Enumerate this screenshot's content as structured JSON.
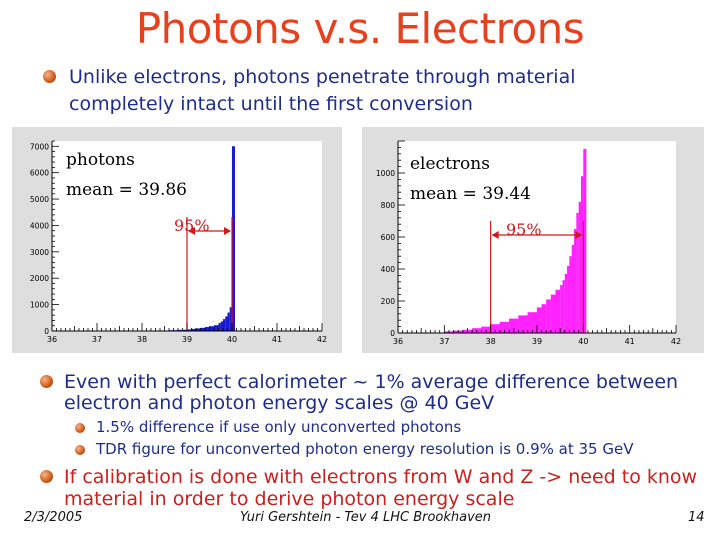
{
  "title": "Photons v.s. Electrons",
  "intro_line1": "Unlike electrons, photons penetrate through material",
  "intro_line2": "completely intact until the first conversion",
  "bullet2_line1": "Even with perfect calorimeter ~ 1% average difference between",
  "bullet2_line2": "electron and photon energy scales @ 40 GeV",
  "sub1": "1.5% difference if use only unconverted photons",
  "sub2": "TDR figure for unconverted photon energy resolution is  0.9% at 35 GeV",
  "bullet3_line1": "If calibration is done with electrons from W and Z -> need to know",
  "bullet3_line2": "material in order to derive photon energy scale",
  "footer": {
    "date": "2/3/2005",
    "author": "Yuri Gershtein - Tev 4 LHC Brookhaven",
    "page": "14"
  },
  "colors": {
    "title": "#e8401c",
    "text": "#1f2d8a",
    "red_text": "#c8201c",
    "photon_fill": "#1a1ad0",
    "electron_fill": "#ff22ff",
    "marker": "#d01818"
  },
  "chart_data": [
    {
      "type": "bar",
      "label_name": "photons",
      "label_mean": "mean = 39.86",
      "annotation": "95%",
      "xlim": [
        36,
        42
      ],
      "ylim": [
        0,
        7200
      ],
      "x_ticks": [
        "36",
        "37",
        "38",
        "39",
        "40",
        "41",
        "42"
      ],
      "y_ticks": [
        "0",
        "1000",
        "2000",
        "3000",
        "4000",
        "5000",
        "6000",
        "7000"
      ],
      "x": [
        38.0,
        38.2,
        38.4,
        38.6,
        38.8,
        39.0,
        39.1,
        39.2,
        39.3,
        39.4,
        39.5,
        39.6,
        39.7,
        39.75,
        39.8,
        39.85,
        39.9,
        39.95,
        40.0
      ],
      "values": [
        10,
        15,
        20,
        30,
        45,
        60,
        80,
        100,
        120,
        150,
        180,
        220,
        300,
        360,
        450,
        550,
        700,
        900,
        7000
      ],
      "marker_x": [
        39.0,
        40.0
      ]
    },
    {
      "type": "bar",
      "label_name": "electrons",
      "label_mean": "mean = 39.44",
      "annotation": "95%",
      "xlim": [
        36,
        42
      ],
      "ylim": [
        0,
        1200
      ],
      "x_ticks": [
        "36",
        "37",
        "38",
        "39",
        "40",
        "41",
        "42"
      ],
      "y_ticks": [
        "0",
        "200",
        "400",
        "600",
        "800",
        "1000"
      ],
      "x": [
        37.0,
        37.2,
        37.4,
        37.6,
        37.8,
        38.0,
        38.2,
        38.4,
        38.6,
        38.8,
        39.0,
        39.1,
        39.2,
        39.3,
        39.4,
        39.5,
        39.55,
        39.6,
        39.65,
        39.7,
        39.75,
        39.8,
        39.85,
        39.9,
        39.95,
        40.0
      ],
      "values": [
        10,
        15,
        20,
        30,
        40,
        55,
        70,
        90,
        110,
        130,
        160,
        180,
        210,
        240,
        270,
        300,
        330,
        370,
        420,
        480,
        550,
        650,
        750,
        820,
        980,
        1150
      ],
      "marker_x": [
        38.0,
        40.0
      ]
    }
  ]
}
